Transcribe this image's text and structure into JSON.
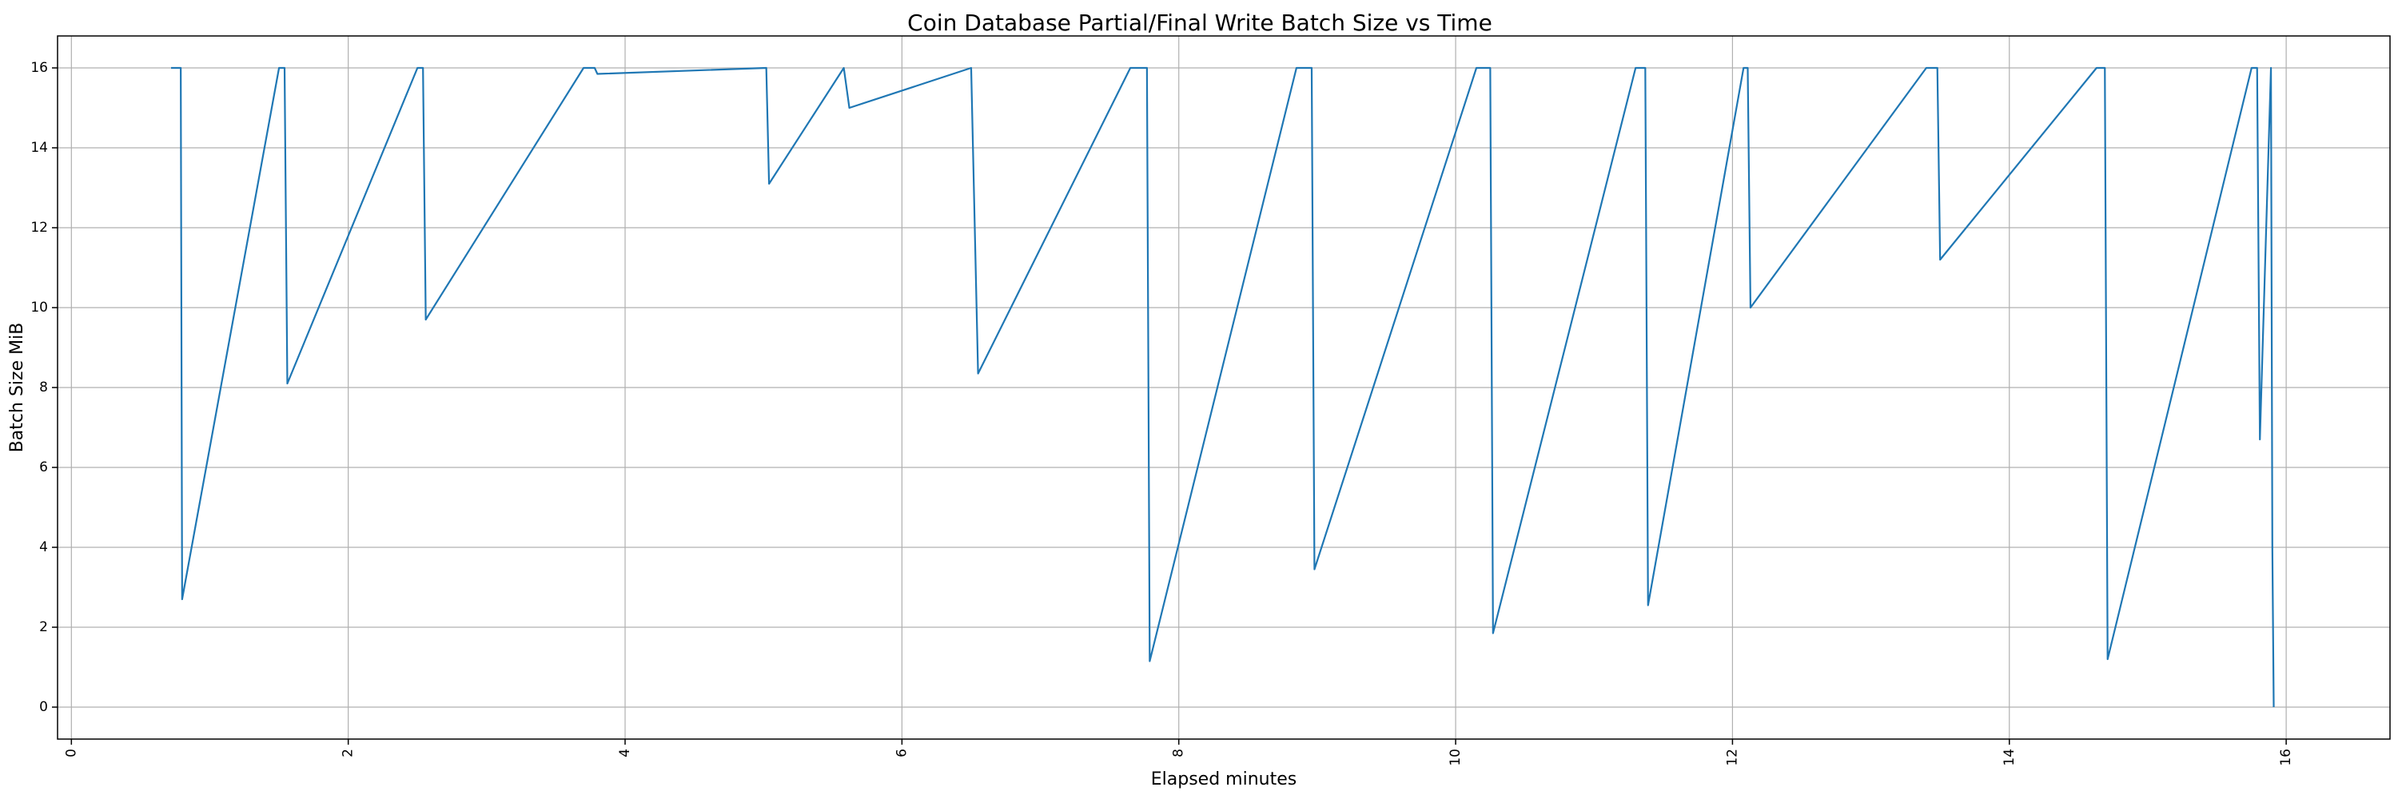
{
  "chart_data": {
    "type": "line",
    "title": "Coin Database Partial/Final Write Batch Size vs Time",
    "xlabel": "Elapsed minutes",
    "ylabel": "Batch Size MiB",
    "xlim": [
      -0.1,
      16.75
    ],
    "ylim": [
      -0.8,
      16.8
    ],
    "xticks": [
      0,
      2,
      4,
      6,
      8,
      10,
      12,
      14,
      16
    ],
    "yticks": [
      0,
      2,
      4,
      6,
      8,
      10,
      12,
      14,
      16
    ],
    "xtick_rotation": "vertical",
    "grid": true,
    "color": "#1f77b4",
    "series": [
      {
        "x": [
          0.72,
          0.79,
          0.8,
          1.5,
          1.54,
          1.56,
          2.5,
          2.54,
          2.56,
          3.7,
          3.78,
          3.8,
          5.02,
          5.04,
          5.58,
          5.62,
          6.5,
          6.55,
          7.65,
          7.77,
          7.79,
          8.85,
          8.96,
          8.98,
          10.15,
          10.25,
          10.27,
          11.3,
          11.37,
          11.39,
          12.08,
          12.11,
          12.13,
          13.4,
          13.48,
          13.5,
          14.63,
          14.69,
          14.71,
          15.75,
          15.79,
          15.81,
          15.89,
          15.9,
          15.91
        ],
        "y": [
          16.0,
          16.0,
          2.7,
          16.0,
          16.0,
          8.1,
          16.0,
          16.0,
          9.7,
          16.0,
          16.0,
          15.85,
          16.0,
          13.1,
          16.0,
          15.0,
          16.0,
          8.35,
          16.0,
          16.0,
          1.15,
          16.0,
          16.0,
          3.45,
          16.0,
          16.0,
          1.85,
          16.0,
          16.0,
          2.55,
          16.0,
          16.0,
          10.0,
          16.0,
          16.0,
          11.2,
          16.0,
          16.0,
          1.2,
          16.0,
          16.0,
          6.7,
          16.0,
          4.0,
          0.0
        ]
      }
    ]
  }
}
